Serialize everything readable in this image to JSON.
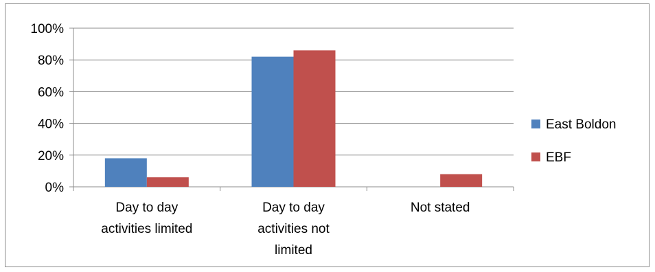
{
  "chart_data": {
    "type": "bar",
    "categories": [
      [
        "Day to day",
        "activities limited"
      ],
      [
        "Day to day",
        "activities not",
        "limited"
      ],
      [
        "Not stated"
      ]
    ],
    "series": [
      {
        "name": "East Boldon",
        "color": "#4f81bd",
        "values": [
          18,
          82,
          0
        ]
      },
      {
        "name": "EBF",
        "color": "#c0504d",
        "values": [
          6,
          86,
          8
        ]
      }
    ],
    "ylim": [
      0,
      100
    ],
    "yticks": [
      0,
      20,
      40,
      60,
      80,
      100
    ],
    "ytick_labels": [
      "0%",
      "20%",
      "40%",
      "60%",
      "80%",
      "100%"
    ],
    "grid": true,
    "legend_position": "right"
  }
}
